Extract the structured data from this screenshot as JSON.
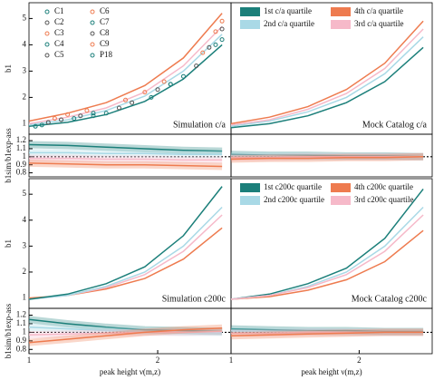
{
  "chart_data": [
    {
      "type": "line",
      "annotation": "Simulation c/a",
      "annotation_color": "#b03a3a",
      "ylabel": "b1",
      "xlim": [
        1,
        2.57
      ],
      "ylim": [
        0.6,
        5.6
      ],
      "yticks": [
        1,
        2,
        3,
        4,
        5
      ],
      "x": [
        1,
        1.3,
        1.6,
        1.9,
        2.2,
        2.5
      ],
      "series": [
        {
          "color": "#1b7f7a",
          "values": [
            0.9,
            1.05,
            1.35,
            1.85,
            2.7,
            4.0
          ]
        },
        {
          "color": "#a9d9e6",
          "values": [
            0.95,
            1.15,
            1.5,
            2.05,
            3.0,
            4.4
          ]
        },
        {
          "color": "#f6b9c9",
          "values": [
            1.0,
            1.25,
            1.6,
            2.2,
            3.2,
            4.7
          ]
        },
        {
          "color": "#ee7b4f",
          "values": [
            1.1,
            1.4,
            1.8,
            2.45,
            3.5,
            5.2
          ]
        }
      ],
      "points": [
        {
          "name": "C1",
          "color": "#1b7f7a",
          "x": [
            1.1,
            1.6,
            2.2
          ],
          "values": [
            0.95,
            1.4,
            2.8
          ]
        },
        {
          "name": "C2",
          "color": "#555555",
          "x": [
            1.15,
            1.7,
            2.3
          ],
          "values": [
            1.05,
            1.6,
            3.2
          ]
        },
        {
          "name": "C3",
          "color": "#ee7b4f",
          "x": [
            1.2,
            1.75,
            2.35
          ],
          "values": [
            1.2,
            1.9,
            3.7
          ]
        },
        {
          "name": "C4",
          "color": "#1b7f7a",
          "x": [
            1.05,
            1.5,
            2.1
          ],
          "values": [
            0.9,
            1.3,
            2.5
          ]
        },
        {
          "name": "C5",
          "color": "#555555",
          "x": [
            1.25,
            1.8,
            2.4
          ],
          "values": [
            1.15,
            1.8,
            3.9
          ]
        },
        {
          "name": "C6",
          "color": "#ee7b4f",
          "x": [
            1.3,
            1.9,
            2.45
          ],
          "values": [
            1.35,
            2.2,
            4.5
          ]
        },
        {
          "name": "C7",
          "color": "#1b7f7a",
          "x": [
            1.35,
            1.95,
            2.5
          ],
          "values": [
            1.2,
            2.0,
            4.2
          ]
        },
        {
          "name": "C8",
          "color": "#555555",
          "x": [
            1.4,
            2.0,
            2.5
          ],
          "values": [
            1.3,
            2.3,
            4.6
          ]
        },
        {
          "name": "C9",
          "color": "#ee7b4f",
          "x": [
            1.45,
            2.05,
            2.5
          ],
          "values": [
            1.5,
            2.6,
            4.9
          ]
        },
        {
          "name": "P18",
          "color": "#1b7f7a",
          "x": [
            1.5,
            2.1,
            2.45
          ],
          "values": [
            1.4,
            2.5,
            4.0
          ]
        }
      ]
    },
    {
      "type": "line",
      "annotation": "Mock Catalog c/a",
      "annotation_color": "#b03a3a",
      "xlim": [
        1,
        2.57
      ],
      "ylim": [
        0.6,
        5.6
      ],
      "x": [
        1,
        1.3,
        1.6,
        1.9,
        2.2,
        2.5
      ],
      "series": [
        {
          "name": "1st c/a quartile",
          "color": "#1b7f7a",
          "values": [
            0.85,
            1.0,
            1.3,
            1.8,
            2.6,
            3.9
          ]
        },
        {
          "name": "4th c/a quartile",
          "color": "#ee7b4f",
          "values": [
            1.0,
            1.25,
            1.65,
            2.3,
            3.3,
            4.9
          ]
        },
        {
          "name": "2nd c/a quartile",
          "color": "#a9d9e6",
          "values": [
            0.9,
            1.1,
            1.45,
            2.0,
            2.9,
            4.3
          ]
        },
        {
          "name": "3rd c/a quartile",
          "color": "#f6b9c9",
          "values": [
            0.95,
            1.15,
            1.55,
            2.15,
            3.1,
            4.6
          ]
        }
      ]
    },
    {
      "type": "line",
      "ylabel": "b1sim/b1exp-ass",
      "xlim": [
        1,
        2.57
      ],
      "ylim": [
        0.75,
        1.28
      ],
      "yticks": [
        0.8,
        0.9,
        1,
        1.1,
        1.2
      ],
      "hline": 1,
      "x": [
        1,
        1.3,
        1.6,
        1.9,
        2.2,
        2.5
      ],
      "series": [
        {
          "color": "#1b7f7a",
          "values": [
            1.15,
            1.14,
            1.12,
            1.1,
            1.08,
            1.07
          ]
        },
        {
          "color": "#a9d9e6",
          "values": [
            1.05,
            1.05,
            1.04,
            1.04,
            1.03,
            1.03
          ]
        },
        {
          "color": "#f6b9c9",
          "values": [
            0.98,
            0.98,
            0.97,
            0.97,
            0.96,
            0.96
          ]
        },
        {
          "color": "#ee7b4f",
          "values": [
            0.92,
            0.91,
            0.9,
            0.9,
            0.89,
            0.88
          ]
        }
      ]
    },
    {
      "type": "line",
      "xlim": [
        1,
        2.57
      ],
      "ylim": [
        0.75,
        1.28
      ],
      "hline": 1,
      "x": [
        1,
        1.3,
        1.6,
        1.9,
        2.2,
        2.5
      ],
      "series": [
        {
          "color": "#1b7f7a",
          "values": [
            1.03,
            1.02,
            1.02,
            1.01,
            1.01,
            1.0
          ]
        },
        {
          "color": "#a9d9e6",
          "values": [
            1.01,
            1.01,
            1.0,
            1.0,
            1.0,
            1.0
          ]
        },
        {
          "color": "#f6b9c9",
          "values": [
            0.99,
            0.99,
            1.0,
            1.0,
            1.0,
            1.0
          ]
        },
        {
          "color": "#ee7b4f",
          "values": [
            0.97,
            0.98,
            0.98,
            0.99,
            0.99,
            1.0
          ]
        }
      ]
    },
    {
      "type": "line",
      "annotation": "Simulation c200c",
      "annotation_color": "#a8841c",
      "ylabel": "b1",
      "xlim": [
        1,
        2.57
      ],
      "ylim": [
        0.6,
        5.6
      ],
      "yticks": [
        1,
        2,
        3,
        4,
        5
      ],
      "x": [
        1,
        1.3,
        1.6,
        1.9,
        2.2,
        2.5
      ],
      "series": [
        {
          "color": "#ee7b4f",
          "values": [
            1.0,
            1.1,
            1.35,
            1.75,
            2.5,
            3.7
          ]
        },
        {
          "color": "#f6b9c9",
          "values": [
            0.95,
            1.1,
            1.4,
            1.9,
            2.8,
            4.2
          ]
        },
        {
          "color": "#a9d9e6",
          "values": [
            0.95,
            1.1,
            1.45,
            2.0,
            3.0,
            4.5
          ]
        },
        {
          "color": "#1b7f7a",
          "values": [
            0.95,
            1.15,
            1.55,
            2.2,
            3.4,
            5.3
          ]
        }
      ]
    },
    {
      "type": "line",
      "annotation": "Mock Catalog c200c",
      "annotation_color": "#a8841c",
      "xlim": [
        1,
        2.57
      ],
      "ylim": [
        0.6,
        5.6
      ],
      "x": [
        1,
        1.3,
        1.6,
        1.9,
        2.2,
        2.5
      ],
      "series": [
        {
          "name": "1st c200c quartile",
          "color": "#1b7f7a",
          "values": [
            0.95,
            1.15,
            1.55,
            2.15,
            3.3,
            5.2
          ]
        },
        {
          "name": "4th c200c quartile",
          "color": "#ee7b4f",
          "values": [
            0.95,
            1.05,
            1.3,
            1.7,
            2.4,
            3.6
          ]
        },
        {
          "name": "2nd c200c quartile",
          "color": "#a9d9e6",
          "values": [
            0.95,
            1.1,
            1.45,
            2.0,
            3.0,
            4.5
          ]
        },
        {
          "name": "3rd c200c quartile",
          "color": "#f6b9c9",
          "values": [
            0.95,
            1.1,
            1.4,
            1.9,
            2.8,
            4.2
          ]
        }
      ]
    },
    {
      "type": "line",
      "ylabel": "b1sim/b1exp-ass",
      "xlabel": "peak height ν(m,z)",
      "xlim": [
        1,
        2.57
      ],
      "xticks": [
        1,
        2
      ],
      "ylim": [
        0.75,
        1.28
      ],
      "yticks": [
        0.8,
        0.9,
        1,
        1.1,
        1.2
      ],
      "hline": 1,
      "x": [
        1,
        1.3,
        1.6,
        1.9,
        2.2,
        2.5
      ],
      "series": [
        {
          "color": "#1b7f7a",
          "values": [
            1.15,
            1.1,
            1.06,
            1.03,
            1.02,
            1.01
          ]
        },
        {
          "color": "#a9d9e6",
          "values": [
            1.06,
            1.04,
            1.02,
            1.01,
            1.0,
            1.0
          ]
        },
        {
          "color": "#f6b9c9",
          "values": [
            0.97,
            0.98,
            0.99,
            1.0,
            1.0,
            1.01
          ]
        },
        {
          "color": "#ee7b4f",
          "values": [
            0.88,
            0.92,
            0.96,
            1.0,
            1.03,
            1.05
          ]
        }
      ]
    },
    {
      "type": "line",
      "xlabel": "peak height ν(m,z)",
      "xlim": [
        1,
        2.57
      ],
      "xticks": [
        1,
        2
      ],
      "ylim": [
        0.75,
        1.28
      ],
      "hline": 1,
      "x": [
        1,
        1.3,
        1.6,
        1.9,
        2.2,
        2.5
      ],
      "series": [
        {
          "color": "#1b7f7a",
          "values": [
            1.04,
            1.03,
            1.02,
            1.02,
            1.01,
            1.01
          ]
        },
        {
          "color": "#a9d9e6",
          "values": [
            1.02,
            1.01,
            1.01,
            1.0,
            1.0,
            1.0
          ]
        },
        {
          "color": "#f6b9c9",
          "values": [
            0.99,
            0.99,
            1.0,
            1.0,
            1.0,
            1.0
          ]
        },
        {
          "color": "#ee7b4f",
          "values": [
            0.96,
            0.97,
            0.98,
            0.99,
            1.0,
            1.0
          ]
        }
      ]
    }
  ]
}
